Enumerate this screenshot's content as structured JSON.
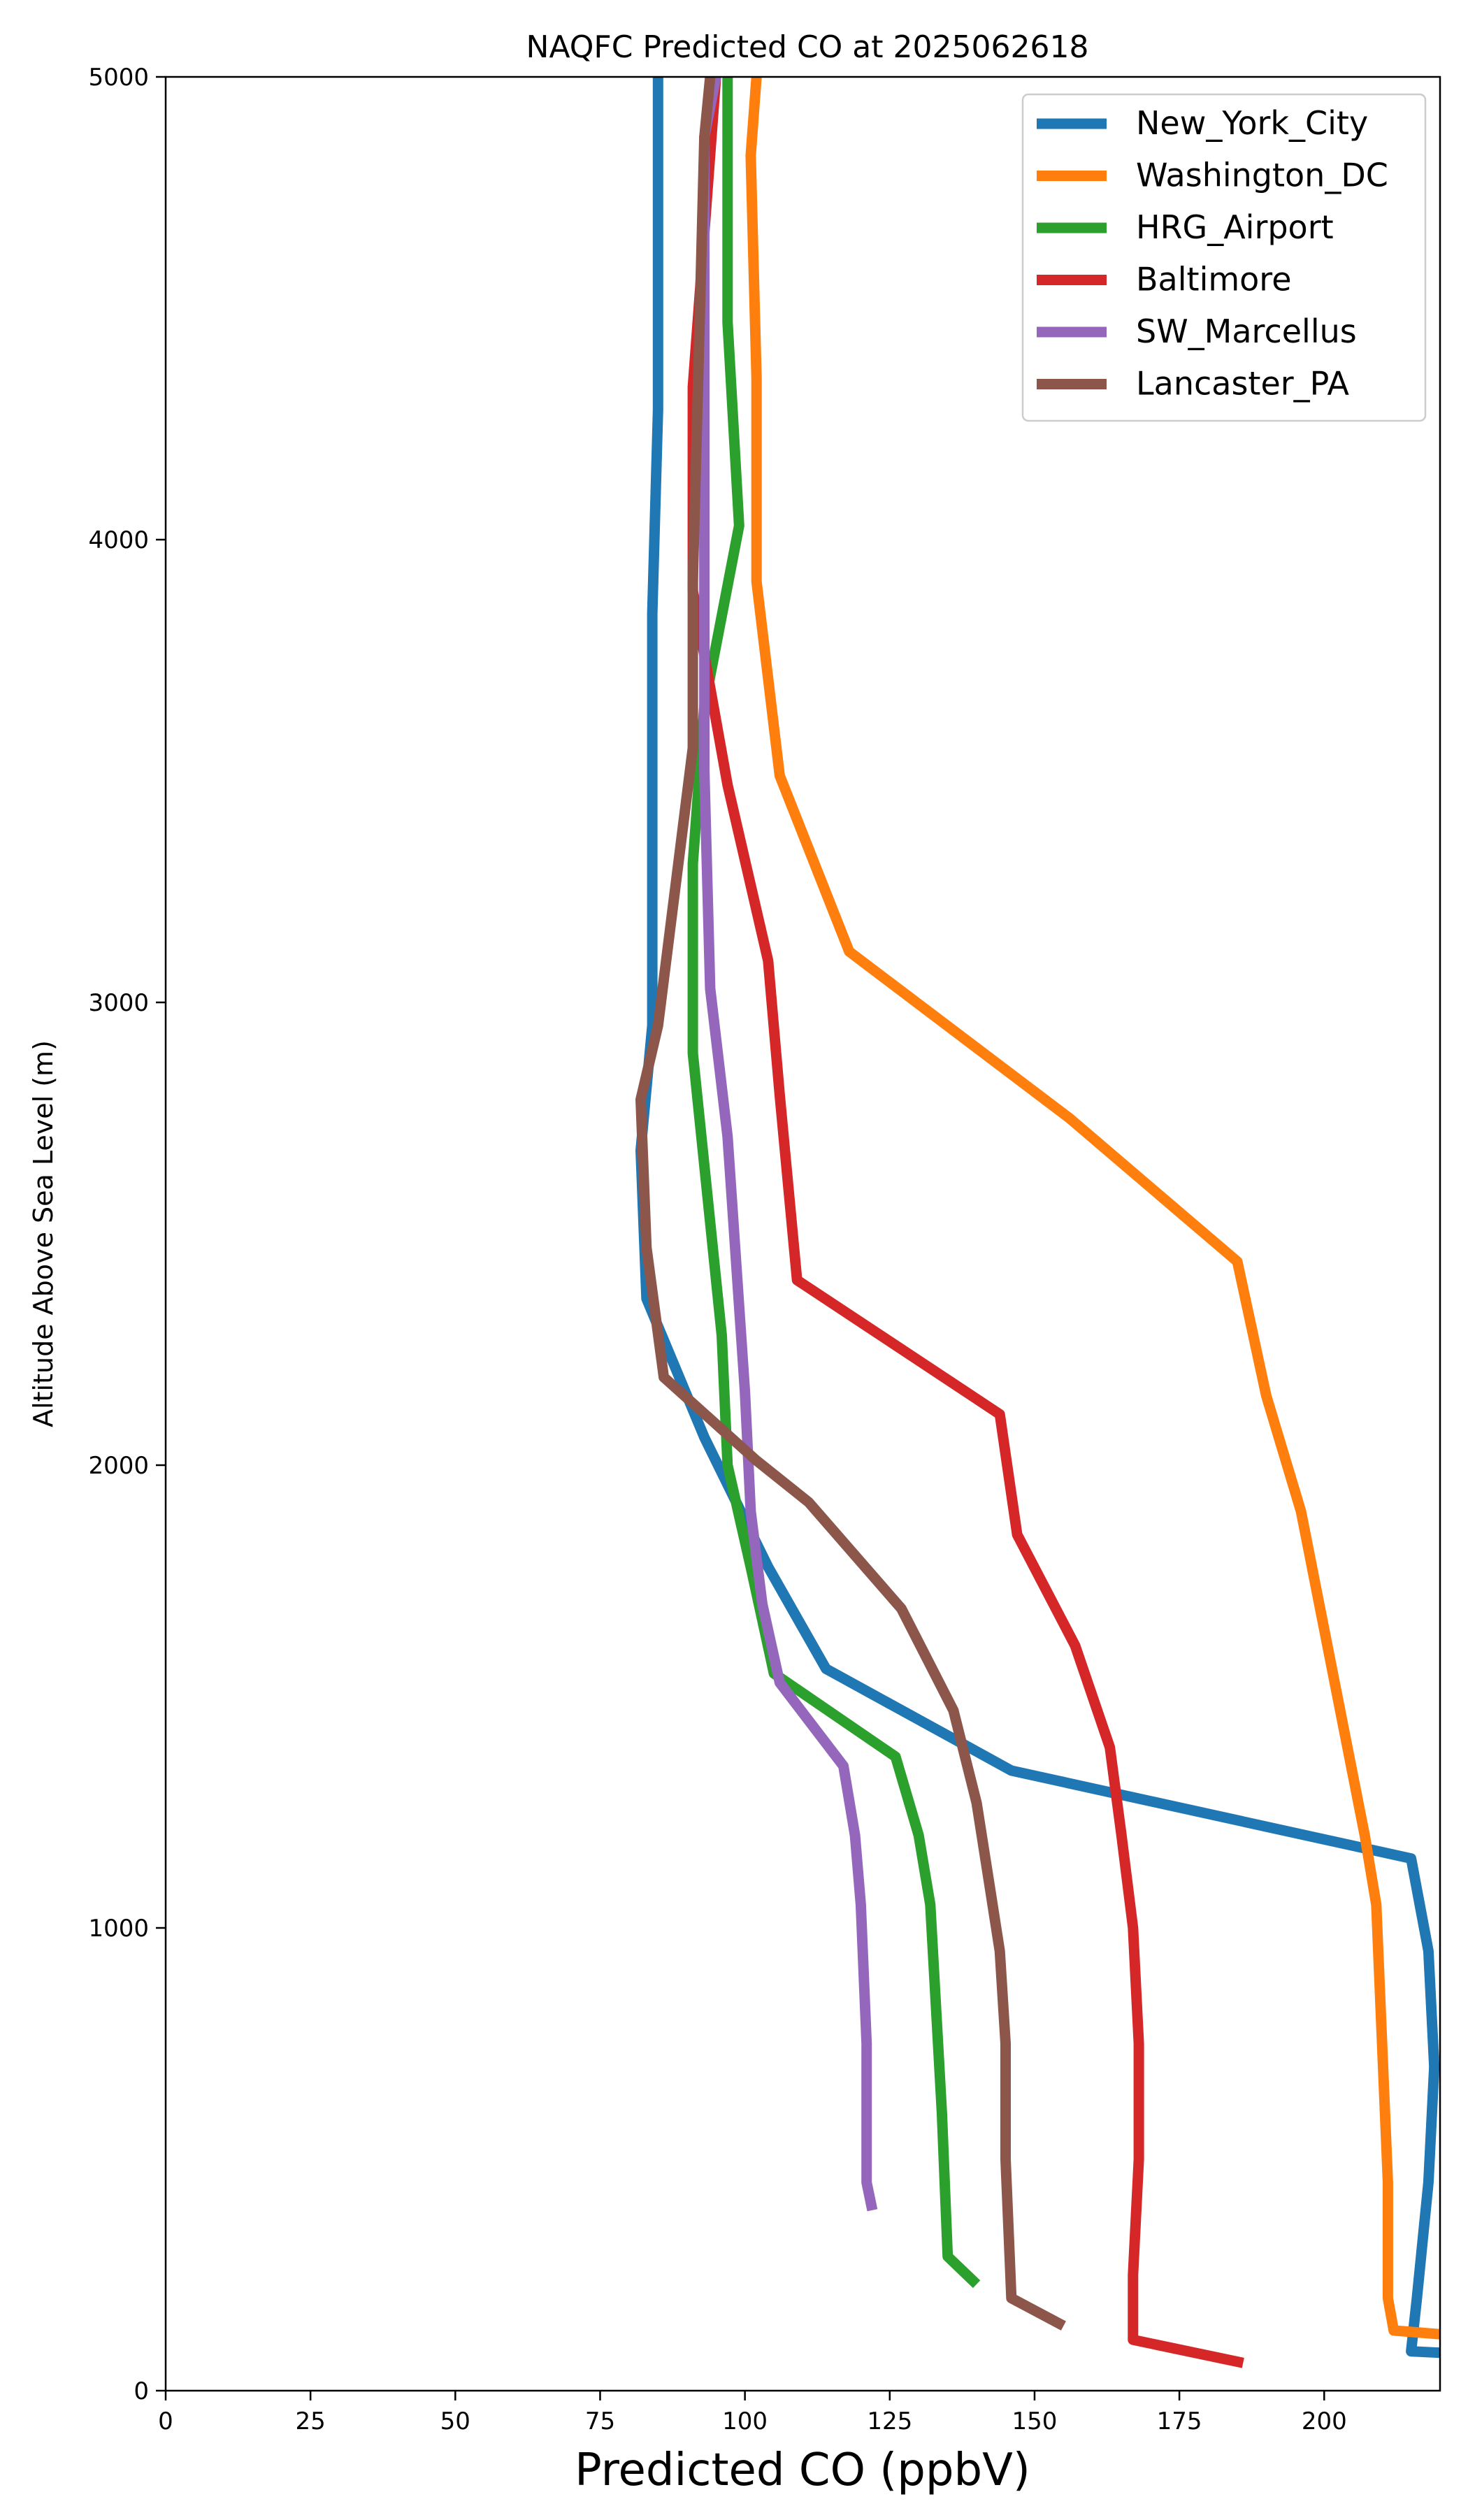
{
  "chart_data": {
    "type": "line",
    "title": "NAQFC Predicted CO at 2025062618",
    "xlabel": "Predicted CO (ppbV)",
    "ylabel": "Altitude Above Sea Level (m)",
    "xlim": [
      0,
      220
    ],
    "ylim": [
      0,
      5000
    ],
    "xticks": [
      0,
      25,
      50,
      75,
      100,
      125,
      150,
      175,
      200
    ],
    "yticks": [
      0,
      1000,
      2000,
      3000,
      4000,
      5000
    ],
    "grid": false,
    "legend_position": "top-right",
    "series": [
      {
        "name": "New_York_City",
        "color": "#1f77b4",
        "points": [
          [
            223,
            80
          ],
          [
            215,
            85
          ],
          [
            216,
            200
          ],
          [
            218,
            450
          ],
          [
            219,
            700
          ],
          [
            218,
            950
          ],
          [
            215,
            1150
          ],
          [
            146,
            1340
          ],
          [
            114,
            1560
          ],
          [
            104,
            1780
          ],
          [
            93,
            2060
          ],
          [
            83,
            2360
          ],
          [
            82,
            2680
          ],
          [
            84,
            2950
          ],
          [
            84,
            3420
          ],
          [
            84,
            3840
          ],
          [
            85,
            4280
          ],
          [
            85,
            4760
          ],
          [
            85,
            5000
          ]
        ]
      },
      {
        "name": "Washington_DC",
        "color": "#ff7f0e",
        "points": [
          [
            222,
            120
          ],
          [
            212,
            130
          ],
          [
            211,
            200
          ],
          [
            211,
            450
          ],
          [
            210,
            750
          ],
          [
            209,
            1050
          ],
          [
            207,
            1200
          ],
          [
            196,
            1900
          ],
          [
            190,
            2150
          ],
          [
            185,
            2440
          ],
          [
            156,
            2750
          ],
          [
            118,
            3110
          ],
          [
            106,
            3490
          ],
          [
            102,
            3910
          ],
          [
            102,
            4350
          ],
          [
            101,
            4830
          ],
          [
            102,
            5000
          ]
        ]
      },
      {
        "name": "HRG_Airport",
        "color": "#2ca02c",
        "points": [
          [
            140,
            230
          ],
          [
            135,
            290
          ],
          [
            134,
            600
          ],
          [
            132,
            1050
          ],
          [
            130,
            1200
          ],
          [
            126,
            1370
          ],
          [
            105,
            1550
          ],
          [
            101,
            1780
          ],
          [
            97,
            2000
          ],
          [
            96,
            2280
          ],
          [
            91,
            2890
          ],
          [
            91,
            3300
          ],
          [
            93,
            3640
          ],
          [
            99,
            4030
          ],
          [
            97,
            4470
          ],
          [
            97,
            5000
          ]
        ]
      },
      {
        "name": "Baltimore",
        "color": "#d62728",
        "points": [
          [
            186,
            60
          ],
          [
            167,
            110
          ],
          [
            167,
            250
          ],
          [
            168,
            500
          ],
          [
            168,
            750
          ],
          [
            167,
            1000
          ],
          [
            165,
            1200
          ],
          [
            163,
            1390
          ],
          [
            157,
            1610
          ],
          [
            147,
            1850
          ],
          [
            144,
            2110
          ],
          [
            109,
            2400
          ],
          [
            106,
            2800
          ],
          [
            104,
            3090
          ],
          [
            97,
            3470
          ],
          [
            91,
            3890
          ],
          [
            91,
            4330
          ],
          [
            95,
            5000
          ]
        ]
      },
      {
        "name": "SW_Marcellus",
        "color": "#9467bd",
        "points": [
          [
            122,
            390
          ],
          [
            121,
            450
          ],
          [
            121,
            750
          ],
          [
            120,
            1050
          ],
          [
            119,
            1200
          ],
          [
            117,
            1350
          ],
          [
            106,
            1530
          ],
          [
            103,
            1700
          ],
          [
            101,
            1900
          ],
          [
            100,
            2160
          ],
          [
            97,
            2710
          ],
          [
            94,
            3030
          ],
          [
            93,
            3500
          ],
          [
            93,
            3940
          ],
          [
            93,
            4410
          ],
          [
            93,
            4870
          ],
          [
            95,
            5000
          ]
        ]
      },
      {
        "name": "Lancaster_PA",
        "color": "#8c564b",
        "points": [
          [
            155,
            140
          ],
          [
            146,
            200
          ],
          [
            145,
            500
          ],
          [
            145,
            750
          ],
          [
            144,
            950
          ],
          [
            142,
            1110
          ],
          [
            140,
            1270
          ],
          [
            136,
            1470
          ],
          [
            127,
            1690
          ],
          [
            111,
            1920
          ],
          [
            102,
            2010
          ],
          [
            86,
            2190
          ],
          [
            83,
            2470
          ],
          [
            82,
            2790
          ],
          [
            85,
            2950
          ],
          [
            91,
            3550
          ],
          [
            91,
            3910
          ],
          [
            92,
            4380
          ],
          [
            93,
            4870
          ],
          [
            94,
            5000
          ]
        ]
      }
    ]
  }
}
